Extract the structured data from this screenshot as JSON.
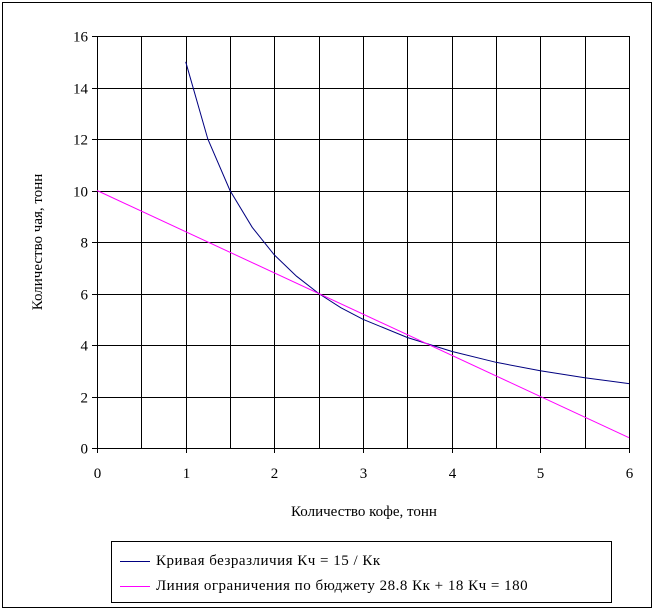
{
  "chart_data": {
    "type": "line",
    "xlabel": "Количество кофе, тонн",
    "ylabel": "Количество чая, тонн",
    "xlim": [
      0,
      6
    ],
    "ylim": [
      0,
      16
    ],
    "x_ticks": [
      "0",
      "1",
      "2",
      "3",
      "4",
      "5",
      "6"
    ],
    "y_ticks": [
      "0",
      "2",
      "4",
      "6",
      "8",
      "10",
      "12",
      "14",
      "16"
    ],
    "grid": true,
    "legend_position": "bottom",
    "series": [
      {
        "name": "Кривая безразличия Кч = 15 / Кк",
        "color": "#000080",
        "x": [
          1,
          1.25,
          1.5,
          1.75,
          2,
          2.25,
          2.5,
          2.75,
          3,
          3.5,
          4,
          4.5,
          5,
          5.5,
          6
        ],
        "y": [
          15,
          12,
          10,
          8.57,
          7.5,
          6.67,
          6,
          5.45,
          5,
          4.29,
          3.75,
          3.33,
          3,
          2.73,
          2.5
        ]
      },
      {
        "name": "Линия ограничения по бюджету 28.8 Кк + 18 Кч = 180",
        "color": "#ff00ff",
        "x": [
          0,
          6
        ],
        "y": [
          10,
          0.4
        ]
      }
    ]
  }
}
